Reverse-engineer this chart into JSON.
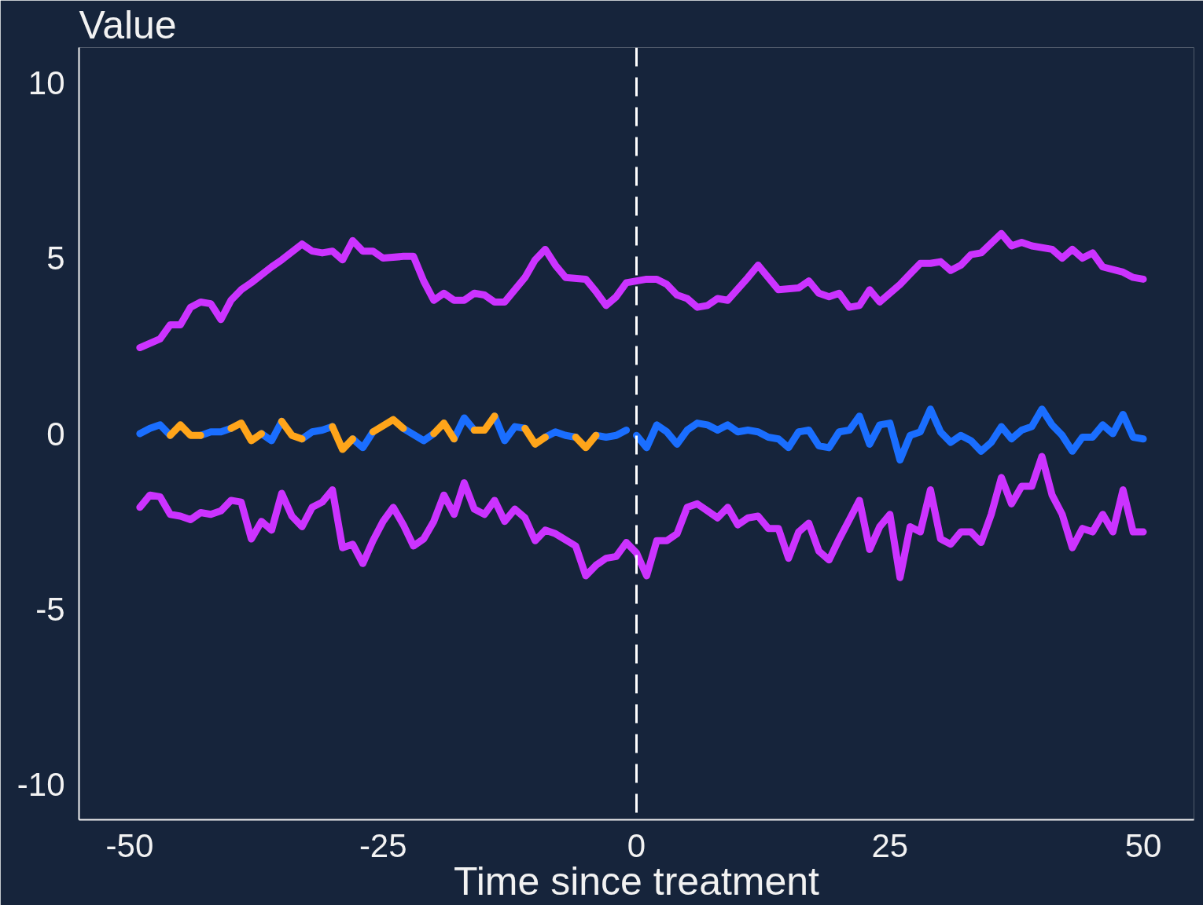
{
  "chart_data": {
    "type": "line",
    "ylabel": "Value",
    "xlabel": "Time since treatment",
    "xlim": [
      -55,
      55
    ],
    "ylim": [
      -11,
      11
    ],
    "xticks": [
      -50,
      -25,
      0,
      25,
      50
    ],
    "yticks": [
      -10,
      -5,
      0,
      5,
      10
    ],
    "line_style": "solid",
    "ref_lines": [
      {
        "axis": "x",
        "value": 0,
        "color": "#ffffff",
        "line_style": "dashed"
      }
    ],
    "series": [
      {
        "color": "#cc33ff",
        "x": [
          -49,
          -47,
          -46,
          -45,
          -44,
          -43,
          -42,
          -41,
          -40,
          -39,
          -38,
          -36,
          -35,
          -33,
          -32,
          -31,
          -30,
          -29,
          -28,
          -27,
          -26,
          -25,
          -23,
          -22,
          -21,
          -20,
          -19,
          -18,
          -17,
          -16,
          -15,
          -14,
          -13,
          -11,
          -10,
          -9,
          -8,
          -7,
          -5,
          -4,
          -3,
          -2,
          -1,
          0,
          1,
          2,
          3,
          4,
          5,
          6,
          7,
          8,
          9,
          11,
          12,
          14,
          16,
          17,
          18,
          19,
          20,
          21,
          22,
          23,
          24,
          26,
          27,
          28,
          29,
          30,
          31,
          32,
          33,
          34,
          36,
          37,
          38,
          39,
          41,
          42,
          43,
          44,
          45,
          46,
          48,
          49,
          50
        ],
        "values": [
          2.45,
          2.7,
          3.1,
          3.1,
          3.6,
          3.75,
          3.7,
          3.25,
          3.8,
          4.1,
          4.3,
          4.75,
          4.95,
          5.4,
          5.2,
          5.15,
          5.2,
          4.95,
          5.5,
          5.2,
          5.2,
          5.0,
          5.05,
          5.05,
          4.35,
          3.8,
          4.0,
          3.8,
          3.8,
          4.0,
          3.95,
          3.75,
          3.75,
          4.45,
          4.95,
          5.25,
          4.8,
          4.45,
          4.4,
          4.05,
          3.65,
          3.9,
          4.3,
          4.35,
          4.4,
          4.4,
          4.25,
          3.95,
          3.85,
          3.6,
          3.65,
          3.85,
          3.8,
          4.45,
          4.8,
          4.1,
          4.15,
          4.35,
          4.0,
          3.9,
          4.0,
          3.6,
          3.65,
          4.1,
          3.75,
          4.25,
          4.55,
          4.85,
          4.85,
          4.9,
          4.65,
          4.8,
          5.1,
          5.15,
          5.7,
          5.35,
          5.45,
          5.35,
          5.25,
          5.0,
          5.25,
          5.0,
          5.15,
          4.75,
          4.6,
          4.45,
          4.4
        ]
      },
      {
        "color": "#cc33ff",
        "x": [
          -49,
          -48,
          -47,
          -46,
          -45,
          -44,
          -43,
          -42,
          -41,
          -40,
          -39,
          -38,
          -37,
          -36,
          -35,
          -34,
          -33,
          -32,
          -31,
          -30,
          -29,
          -28,
          -27,
          -26,
          -25,
          -24,
          -23,
          -22,
          -21,
          -20,
          -19,
          -18,
          -17,
          -16,
          -15,
          -14,
          -13,
          -12,
          -11,
          -10,
          -9,
          -8,
          -6,
          -5,
          -4,
          -3,
          -2,
          -1,
          0,
          1,
          2,
          3,
          4,
          5,
          6,
          7,
          8,
          9,
          10,
          11,
          12,
          13,
          14,
          15,
          16,
          17,
          18,
          19,
          20,
          21,
          22,
          23,
          24,
          25,
          26,
          27,
          28,
          29,
          30,
          31,
          32,
          33,
          34,
          35,
          36,
          37,
          38,
          39,
          40,
          41,
          42,
          43,
          44,
          45,
          46,
          47,
          48,
          49,
          50
        ],
        "values": [
          -2.1,
          -1.75,
          -1.8,
          -2.3,
          -2.35,
          -2.45,
          -2.25,
          -2.3,
          -2.2,
          -1.9,
          -1.95,
          -3.0,
          -2.5,
          -2.75,
          -1.7,
          -2.35,
          -2.65,
          -2.1,
          -1.95,
          -1.6,
          -3.25,
          -3.15,
          -3.7,
          -3.05,
          -2.5,
          -2.1,
          -2.6,
          -3.2,
          -3.0,
          -2.5,
          -1.75,
          -2.3,
          -1.4,
          -2.15,
          -2.3,
          -1.9,
          -2.5,
          -2.15,
          -2.4,
          -3.05,
          -2.75,
          -2.85,
          -3.2,
          -4.05,
          -3.75,
          -3.55,
          -3.5,
          -3.1,
          -3.4,
          -4.05,
          -3.05,
          -3.05,
          -2.85,
          -2.1,
          -2.0,
          -2.2,
          -2.4,
          -2.1,
          -2.6,
          -2.4,
          -2.35,
          -2.7,
          -2.7,
          -3.55,
          -2.8,
          -2.55,
          -3.35,
          -3.6,
          -3.0,
          -2.45,
          -1.9,
          -3.3,
          -2.65,
          -2.3,
          -4.1,
          -2.65,
          -2.8,
          -1.6,
          -3.0,
          -3.15,
          -2.8,
          -2.8,
          -3.1,
          -2.3,
          -1.25,
          -2.0,
          -1.5,
          -1.5,
          -0.65,
          -1.75,
          -2.3,
          -3.25,
          -2.7,
          -2.8,
          -2.3,
          -2.8,
          -1.6,
          -2.8,
          -2.8
        ]
      },
      {
        "color": "#1a6eff",
        "x": [
          -49,
          -48,
          -47,
          -46,
          -45,
          -44,
          -43,
          -42,
          -41,
          -40,
          -39,
          -38,
          -37,
          -36,
          -35,
          -34,
          -33,
          -32,
          -31,
          -30,
          -29,
          -28,
          -27,
          -26,
          -24,
          -23,
          -21,
          -20,
          -19,
          -18,
          -17,
          -16,
          -15,
          -14,
          -13,
          -12,
          -11,
          -10,
          -9,
          -8,
          -7,
          -6,
          -5,
          -4,
          -3,
          -2,
          -1
        ],
        "values": [
          0.0,
          0.15,
          0.25,
          -0.05,
          null,
          null,
          -0.05,
          0.05,
          0.05,
          0.15,
          null,
          null,
          0.0,
          -0.2,
          0.35,
          null,
          -0.15,
          0.05,
          0.1,
          0.2,
          null,
          -0.15,
          -0.4,
          0.05,
          null,
          0.15,
          -0.2,
          0.0,
          null,
          -0.15,
          0.45,
          0.1,
          null,
          0.5,
          -0.2,
          0.2,
          0.15,
          null,
          -0.1,
          0.05,
          -0.05,
          -0.1,
          null,
          -0.05,
          -0.1,
          -0.05,
          0.1
        ]
      },
      {
        "color": "#1a6eff",
        "x": [
          0,
          1,
          2,
          3,
          4,
          5,
          6,
          7,
          8,
          9,
          10,
          11,
          12,
          13,
          14,
          15,
          16,
          17,
          18,
          19,
          20,
          21,
          22,
          23,
          24,
          25,
          26,
          27,
          28,
          29,
          30,
          31,
          32,
          33,
          34,
          35,
          36,
          37,
          38,
          39,
          40,
          41,
          42,
          43,
          44,
          45,
          46,
          47,
          48,
          49,
          50
        ],
        "values": [
          -0.05,
          -0.4,
          0.25,
          0.05,
          -0.3,
          0.1,
          0.3,
          0.25,
          0.1,
          0.25,
          0.05,
          0.1,
          0.05,
          -0.1,
          -0.15,
          -0.4,
          0.05,
          0.1,
          -0.35,
          -0.4,
          0.05,
          0.1,
          0.5,
          -0.3,
          0.25,
          0.3,
          -0.75,
          -0.05,
          0.05,
          0.7,
          0.05,
          -0.25,
          -0.05,
          -0.2,
          -0.5,
          -0.25,
          0.2,
          -0.15,
          0.1,
          0.2,
          0.7,
          0.25,
          -0.05,
          -0.5,
          -0.1,
          -0.1,
          0.25,
          0.0,
          0.55,
          -0.1,
          -0.15
        ]
      },
      {
        "color": "#ffa51a",
        "x": [
          -46,
          -45,
          -44,
          -43,
          -42,
          -41,
          -40,
          -39,
          -38,
          -37,
          -36,
          -35,
          -34,
          -33,
          -32,
          -31,
          -30,
          -29,
          -28,
          -27,
          -26,
          -24,
          -23,
          -21,
          -20,
          -19,
          -18,
          -17,
          -16,
          -15,
          -14,
          -13,
          -12,
          -11,
          -10,
          -9,
          -8,
          -7,
          -6,
          -5,
          -4
        ],
        "values": [
          -0.05,
          0.25,
          -0.05,
          -0.05,
          null,
          null,
          0.15,
          0.3,
          -0.2,
          0.0,
          null,
          0.35,
          -0.05,
          -0.15,
          null,
          null,
          0.2,
          -0.45,
          -0.15,
          null,
          0.05,
          0.4,
          0.15,
          null,
          0.0,
          0.3,
          -0.15,
          null,
          0.1,
          0.1,
          0.5,
          null,
          null,
          0.15,
          -0.3,
          -0.1,
          null,
          null,
          -0.1,
          -0.4,
          -0.05
        ]
      }
    ]
  }
}
